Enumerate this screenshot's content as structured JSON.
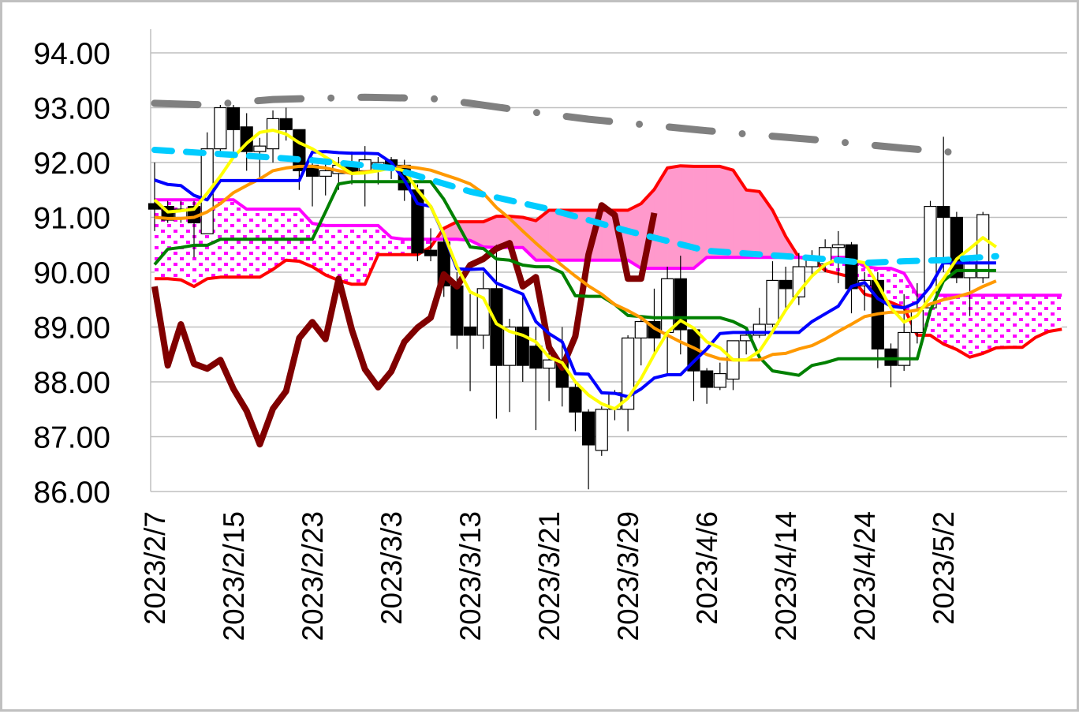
{
  "chart_data": {
    "type": "candlestick-ichimoku",
    "title": "",
    "xlabel": "",
    "ylabel": "",
    "ylim": [
      86,
      94
    ],
    "y_ticks": [
      "86.00",
      "87.00",
      "88.00",
      "89.00",
      "90.00",
      "91.00",
      "92.00",
      "93.00",
      "94.00"
    ],
    "grid": "horizontal",
    "x_ticks": [
      {
        "index": 0,
        "label": "2023/2/7"
      },
      {
        "index": 6,
        "label": "2023/2/15"
      },
      {
        "index": 12,
        "label": "2023/2/23"
      },
      {
        "index": 18,
        "label": "2023/3/3"
      },
      {
        "index": 24,
        "label": "2023/3/13"
      },
      {
        "index": 30,
        "label": "2023/3/21"
      },
      {
        "index": 36,
        "label": "2023/3/29"
      },
      {
        "index": 42,
        "label": "2023/4/6"
      },
      {
        "index": 48,
        "label": "2023/4/14"
      },
      {
        "index": 54,
        "label": "2023/4/24"
      },
      {
        "index": 60,
        "label": "2023/5/2"
      }
    ],
    "candles_ohlc": [
      [
        91.25,
        92.0,
        90.75,
        91.15
      ],
      [
        91.2,
        91.3,
        90.9,
        90.95
      ],
      [
        91.0,
        91.3,
        90.9,
        91.15
      ],
      [
        91.2,
        91.3,
        90.27,
        90.9
      ],
      [
        90.7,
        92.55,
        90.7,
        92.25
      ],
      [
        92.25,
        93.05,
        92.1,
        93.0
      ],
      [
        93.0,
        93.05,
        92.2,
        92.6
      ],
      [
        92.65,
        92.9,
        91.85,
        92.2
      ],
      [
        92.2,
        92.45,
        91.7,
        92.3
      ],
      [
        92.25,
        92.95,
        92.0,
        92.8
      ],
      [
        92.8,
        93.0,
        92.4,
        92.6
      ],
      [
        92.6,
        92.6,
        91.5,
        91.85
      ],
      [
        91.95,
        92.1,
        91.2,
        91.75
      ],
      [
        91.75,
        92.0,
        91.4,
        91.85
      ],
      [
        91.8,
        92.1,
        91.5,
        91.95
      ],
      [
        92.0,
        92.2,
        91.6,
        91.8
      ],
      [
        91.85,
        92.3,
        91.2,
        92.05
      ],
      [
        91.9,
        92.1,
        91.6,
        92.0
      ],
      [
        92.05,
        92.1,
        91.7,
        91.95
      ],
      [
        91.95,
        92.05,
        91.3,
        91.5
      ],
      [
        91.5,
        91.6,
        90.2,
        90.35
      ],
      [
        90.4,
        90.8,
        90.2,
        90.3
      ],
      [
        90.55,
        90.7,
        89.55,
        89.75
      ],
      [
        89.75,
        90.0,
        88.6,
        88.85
      ],
      [
        89.0,
        89.6,
        87.83,
        88.85
      ],
      [
        88.85,
        90.0,
        88.6,
        89.7
      ],
      [
        89.7,
        90.5,
        87.33,
        88.3
      ],
      [
        88.3,
        89.15,
        87.45,
        89.0
      ],
      [
        89.0,
        89.6,
        88.0,
        88.3
      ],
      [
        88.65,
        89.0,
        87.12,
        88.25
      ],
      [
        88.25,
        88.7,
        87.65,
        88.4
      ],
      [
        88.4,
        89.0,
        87.55,
        87.9
      ],
      [
        87.9,
        88.0,
        87.1,
        87.45
      ],
      [
        87.45,
        87.5,
        86.04,
        86.85
      ],
      [
        86.75,
        87.55,
        86.65,
        87.5
      ],
      [
        87.5,
        87.85,
        87.3,
        87.8
      ],
      [
        87.5,
        88.85,
        87.1,
        88.8
      ],
      [
        88.8,
        89.15,
        88.3,
        89.1
      ],
      [
        89.1,
        89.7,
        88.5,
        88.8
      ],
      [
        88.9,
        90.1,
        88.1,
        89.88
      ],
      [
        89.88,
        90.3,
        88.5,
        88.95
      ],
      [
        88.95,
        89.0,
        87.65,
        88.2
      ],
      [
        88.2,
        88.25,
        87.6,
        87.9
      ],
      [
        87.9,
        88.35,
        87.85,
        88.15
      ],
      [
        88.05,
        88.75,
        87.85,
        88.75
      ],
      [
        88.75,
        89.0,
        88.5,
        88.85
      ],
      [
        88.85,
        89.35,
        88.8,
        89.05
      ],
      [
        89.05,
        90.2,
        89.0,
        89.85
      ],
      [
        89.85,
        90.1,
        89.35,
        89.7
      ],
      [
        89.55,
        90.35,
        89.4,
        90.1
      ],
      [
        90.1,
        90.4,
        89.9,
        90.25
      ],
      [
        90.15,
        90.6,
        90.0,
        90.45
      ],
      [
        90.45,
        90.75,
        89.8,
        90.5
      ],
      [
        90.5,
        90.55,
        89.25,
        89.7
      ],
      [
        89.75,
        90.0,
        89.3,
        89.85
      ],
      [
        89.85,
        90.0,
        88.25,
        88.6
      ],
      [
        88.6,
        88.7,
        87.9,
        88.3
      ],
      [
        88.3,
        89.6,
        88.2,
        88.9
      ],
      [
        88.9,
        89.8,
        88.7,
        89.3
      ],
      [
        89.35,
        91.3,
        89.2,
        91.2
      ],
      [
        91.2,
        92.47,
        90.0,
        91.0
      ],
      [
        91.0,
        91.1,
        89.8,
        89.9
      ],
      [
        89.9,
        90.2,
        89.2,
        90.15
      ],
      [
        89.9,
        91.1,
        89.8,
        91.05
      ]
    ],
    "series": [
      {
        "name": "blue-line",
        "color": "#0000FF",
        "start": 0,
        "values": [
          91.68,
          91.6,
          91.58,
          91.4,
          91.32,
          91.67,
          91.67,
          91.67,
          91.67,
          91.67,
          91.67,
          91.67,
          92.19,
          92.2,
          92.18,
          92.17,
          92.17,
          92.16,
          92.0,
          91.68,
          91.25,
          91.2,
          90.68,
          90.06,
          90.05,
          90.06,
          89.8,
          89.7,
          89.6,
          89.1,
          88.88,
          88.73,
          88.15,
          88.14,
          87.8,
          87.79,
          87.73,
          87.87,
          88.07,
          88.13,
          88.13,
          88.37,
          88.6,
          88.88,
          88.9,
          88.9,
          88.9,
          88.9,
          88.9,
          88.9,
          89.1,
          89.24,
          89.38,
          89.74,
          89.81,
          89.52,
          89.38,
          89.35,
          89.45,
          89.74,
          90.17,
          90.17,
          90.17,
          90.17,
          90.17
        ]
      },
      {
        "name": "green-line",
        "color": "#008000",
        "start": 0,
        "values": [
          90.14,
          90.42,
          90.45,
          90.49,
          90.49,
          90.6,
          90.6,
          90.6,
          90.6,
          90.6,
          90.6,
          90.6,
          90.6,
          91.1,
          91.61,
          91.65,
          91.65,
          91.65,
          91.65,
          91.65,
          91.65,
          91.65,
          91.33,
          90.9,
          90.46,
          90.43,
          90.24,
          90.22,
          90.13,
          90.1,
          90.1,
          89.99,
          89.57,
          89.56,
          89.56,
          89.41,
          89.21,
          89.19,
          89.17,
          89.17,
          89.17,
          89.17,
          89.17,
          89.17,
          89.1,
          88.98,
          88.45,
          88.2,
          88.16,
          88.12,
          88.3,
          88.35,
          88.42,
          88.42,
          88.42,
          88.42,
          88.42,
          88.42,
          88.42,
          89.3,
          89.84,
          90.03,
          90.03,
          90.03,
          90.03
        ]
      },
      {
        "name": "yellow-line",
        "color": "#FFFF00",
        "start": 0,
        "values": [
          91.32,
          91.1,
          91.12,
          91.15,
          91.44,
          91.75,
          92.1,
          92.35,
          92.55,
          92.59,
          92.52,
          92.36,
          92.25,
          92.1,
          91.95,
          91.8,
          91.81,
          91.85,
          91.9,
          91.85,
          91.5,
          91.2,
          90.7,
          90.1,
          89.64,
          89.53,
          89.06,
          88.92,
          88.85,
          88.73,
          88.45,
          88.35,
          88.0,
          87.76,
          87.6,
          87.51,
          87.7,
          88.06,
          88.5,
          88.9,
          89.12,
          88.98,
          88.73,
          88.62,
          88.4,
          88.4,
          88.56,
          88.92,
          89.31,
          89.64,
          89.93,
          90.14,
          90.24,
          90.22,
          90.17,
          89.78,
          89.35,
          89.09,
          89.21,
          89.55,
          89.88,
          90.24,
          90.43,
          90.63,
          90.46
        ]
      },
      {
        "name": "orange-line",
        "color": "#FF9900",
        "start": 0,
        "values": [
          91.0,
          90.98,
          90.98,
          91.0,
          91.1,
          91.25,
          91.45,
          91.58,
          91.7,
          91.85,
          91.9,
          91.93,
          91.93,
          91.9,
          91.85,
          91.8,
          91.83,
          91.86,
          91.9,
          91.93,
          91.9,
          91.86,
          91.78,
          91.7,
          91.61,
          91.44,
          91.18,
          90.98,
          90.75,
          90.53,
          90.32,
          90.12,
          89.93,
          89.75,
          89.6,
          89.41,
          89.3,
          89.17,
          88.98,
          88.85,
          88.73,
          88.62,
          88.5,
          88.42,
          88.4,
          88.4,
          88.4,
          88.5,
          88.52,
          88.6,
          88.66,
          88.78,
          88.92,
          89.05,
          89.19,
          89.24,
          89.27,
          89.27,
          89.31,
          89.42,
          89.5,
          89.55,
          89.62,
          89.74,
          89.84
        ]
      },
      {
        "name": "red-line",
        "color": "#FF0000",
        "start": 0,
        "values": [
          89.88,
          89.88,
          89.86,
          89.74,
          89.88,
          89.91,
          89.91,
          89.91,
          89.91,
          90.05,
          90.22,
          90.2,
          90.1,
          89.95,
          89.85,
          89.78,
          89.78,
          90.32,
          90.32,
          90.32,
          90.32,
          90.46,
          90.8,
          90.92,
          90.92,
          90.92,
          91.02,
          91.02,
          91.0,
          90.94,
          91.13,
          91.13,
          91.13,
          91.13,
          91.13,
          91.13,
          91.13,
          91.25,
          91.51,
          91.9,
          91.94,
          91.93,
          91.93,
          91.93,
          91.86,
          91.5,
          91.47,
          91.13,
          90.65,
          90.27,
          90.24,
          90.03,
          89.97,
          89.91,
          89.6,
          89.53,
          89.45,
          89.35,
          88.85,
          88.85,
          88.69,
          88.59,
          88.45,
          88.52,
          88.62,
          88.63,
          88.63,
          88.81,
          88.92,
          88.96
        ]
      },
      {
        "name": "magenta-line",
        "color": "#FF00FF",
        "start": 0,
        "values": [
          91.32,
          91.32,
          91.32,
          91.32,
          91.32,
          91.32,
          91.32,
          91.15,
          91.15,
          91.15,
          91.15,
          91.15,
          90.89,
          90.85,
          90.85,
          90.85,
          90.85,
          90.85,
          90.63,
          90.6,
          90.6,
          90.6,
          90.6,
          90.6,
          90.58,
          90.46,
          90.45,
          90.45,
          90.45,
          90.22,
          90.22,
          90.22,
          90.22,
          90.22,
          90.22,
          90.22,
          90.22,
          90.07,
          90.07,
          90.07,
          90.07,
          90.07,
          90.27,
          90.27,
          90.27,
          90.27,
          90.27,
          90.27,
          90.27,
          90.27,
          90.27,
          90.27,
          90.27,
          90.27,
          90.1,
          90.07,
          90.07,
          89.98,
          89.58,
          89.58,
          89.58,
          89.58,
          89.58,
          89.58,
          89.58,
          89.58,
          89.58,
          89.58,
          89.58,
          89.58
        ]
      },
      {
        "name": "dark-red-line",
        "color": "#800000",
        "start": 0,
        "values": [
          89.74,
          88.3,
          89.05,
          88.33,
          88.24,
          88.4,
          87.87,
          87.47,
          86.86,
          87.51,
          87.83,
          88.8,
          89.09,
          88.78,
          89.88,
          88.95,
          88.23,
          87.9,
          88.19,
          88.73,
          88.99,
          89.17,
          89.96,
          89.74,
          90.13,
          90.24,
          90.43,
          90.53,
          89.74,
          89.91,
          88.63,
          88.26,
          88.83,
          90.32,
          91.22,
          91.04,
          89.88,
          89.88,
          91.08
        ]
      }
    ],
    "sparse_series": [
      {
        "name": "cyan-dashed-line",
        "color": "#00CCFF",
        "x": [
          0,
          6,
          12,
          18,
          24,
          30,
          36,
          42,
          48,
          51,
          54,
          57,
          60,
          64
        ],
        "y": [
          92.23,
          92.14,
          92.04,
          91.9,
          91.47,
          91.15,
          90.75,
          90.39,
          90.29,
          90.24,
          90.17,
          90.2,
          90.22,
          90.29
        ]
      },
      {
        "name": "gray-dash-dot-line",
        "color": "#808080",
        "x": [
          0,
          4,
          6,
          9,
          12,
          16,
          21,
          24,
          27,
          30,
          33,
          36,
          39,
          42,
          45,
          48,
          51,
          54,
          57,
          62
        ],
        "y": [
          93.08,
          93.05,
          93.09,
          93.15,
          93.17,
          93.19,
          93.17,
          93.08,
          92.98,
          92.88,
          92.79,
          92.72,
          92.65,
          92.58,
          92.52,
          92.46,
          92.4,
          92.33,
          92.26,
          92.16
        ]
      }
    ],
    "cloud": {
      "upper_color": "#FF99CC",
      "lower_pattern_color": "#FF00FF"
    }
  }
}
